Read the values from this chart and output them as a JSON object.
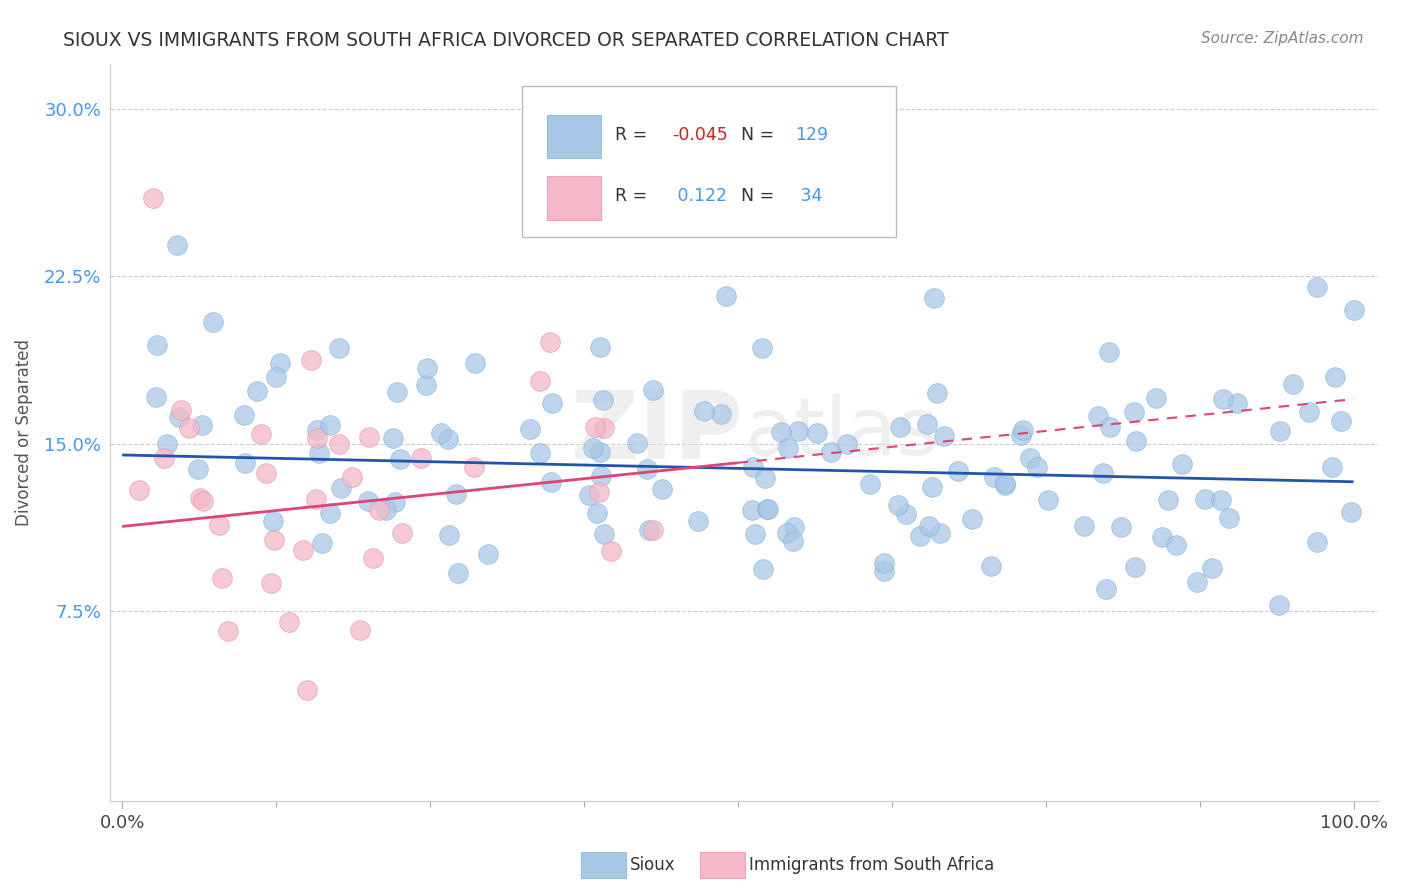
{
  "title": "SIOUX VS IMMIGRANTS FROM SOUTH AFRICA DIVORCED OR SEPARATED CORRELATION CHART",
  "source": "Source: ZipAtlas.com",
  "ylabel": "Divorced or Separated",
  "color_blue": "#a8c8e8",
  "color_blue_edge": "#7aafd4",
  "color_pink": "#f4b8c8",
  "color_pink_edge": "#e888a8",
  "line_blue": "#2255aa",
  "line_pink": "#dd4477",
  "background_color": "#ffffff",
  "grid_color": "#cccccc",
  "ytick_color": "#4499ee",
  "watermark_color": "#dddddd",
  "title_color": "#333333",
  "source_color": "#888888",
  "ylabel_color": "#555555",
  "legend_r1_val": "-0.045",
  "legend_n1_val": "129",
  "legend_r2_val": "0.122",
  "legend_n2_val": "34",
  "blue_trend": [
    0.0,
    14.5,
    100.0,
    13.3
  ],
  "pink_solid_end_x": 50.0,
  "pink_trend": [
    0.0,
    11.3,
    100.0,
    17.0
  ],
  "xlim_min": -1,
  "xlim_max": 102,
  "ylim_min": -1,
  "ylim_max": 32,
  "ytick_vals": [
    7.5,
    15.0,
    22.5,
    30.0
  ],
  "xtick_major": [
    0,
    100
  ],
  "xtick_minor": [
    12.5,
    25.0,
    37.5,
    50.0,
    62.5,
    75.0,
    87.5
  ]
}
